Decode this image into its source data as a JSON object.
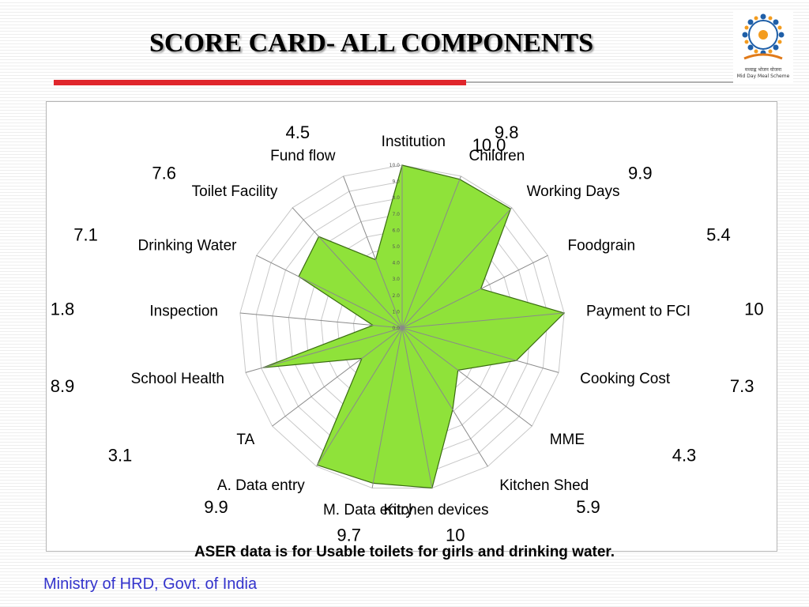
{
  "slide": {
    "title": "SCORE CARD- ALL COMPONENTS",
    "footnote": "ASER data is for Usable toilets for girls and drinking water.",
    "footer": "Ministry of HRD, Govt. of India",
    "logo_text_line1": "मध्याह्न भोजन योजना",
    "logo_text_line2": "Mid Day Meal Scheme"
  },
  "chart_data": {
    "type": "radar",
    "title": "",
    "rlim": [
      0,
      10
    ],
    "ticks": [
      "0.0",
      "1.0",
      "2.0",
      "3.0",
      "4.0",
      "5.0",
      "6.0",
      "7.0",
      "8.0",
      "9.0",
      "10.0"
    ],
    "grid": true,
    "fill_color": "#8fe23a",
    "categories": [
      "Institution",
      "Children",
      "Working Days",
      "Foodgrain",
      "Payment to FCI",
      "Cooking Cost",
      "MME",
      "Kitchen Shed",
      "Kitchen devices",
      "M. Data entry",
      "A. Data entry",
      "TA",
      "School Health",
      "Inspection",
      "Drinking Water",
      "Toilet Facility",
      "Fund flow"
    ],
    "values": [
      10,
      9.8,
      9.9,
      5.4,
      10,
      7.3,
      4.3,
      5.9,
      10,
      9.7,
      9.9,
      3.1,
      8.9,
      1.8,
      7.1,
      7.6,
      4.5
    ],
    "value_labels": [
      "10.0",
      "9.8",
      "9.9",
      "5.4",
      "10",
      "7.3",
      "4.3",
      "5.9",
      "10",
      "9.7",
      "9.9",
      "3.1",
      "8.9",
      "1.8",
      "7.1",
      "7.6",
      "4.5"
    ]
  }
}
